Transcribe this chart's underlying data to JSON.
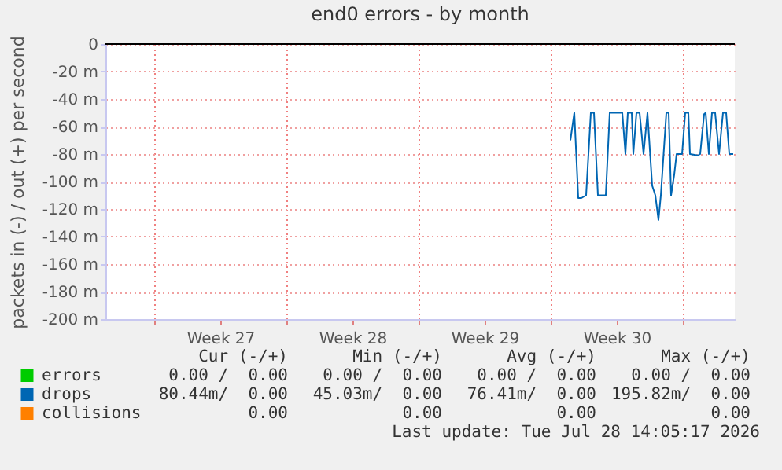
{
  "chart_data": {
    "type": "line",
    "title": "end0 errors - by month",
    "ylabel": "packets in (-) / out (+) per second",
    "x": [
      "2026-07-21T01:00",
      "2026-07-21T06:00",
      "2026-07-21T11:00",
      "2026-07-21T15:00",
      "2026-07-21T21:00",
      "2026-07-22T03:00",
      "2026-07-22T07:00",
      "2026-07-22T12:00",
      "2026-07-22T22:00",
      "2026-07-23T03:00",
      "2026-07-23T08:00",
      "2026-07-23T19:00",
      "2026-07-23T23:00",
      "2026-07-24T02:00",
      "2026-07-24T07:00",
      "2026-07-24T09:00",
      "2026-07-24T13:00",
      "2026-07-24T17:00",
      "2026-07-24T22:00",
      "2026-07-25T03:00",
      "2026-07-25T09:00",
      "2026-07-25T13:00",
      "2026-07-25T17:00",
      "2026-07-25T20:00",
      "2026-07-26T03:00",
      "2026-07-26T06:00",
      "2026-07-26T09:00",
      "2026-07-26T13:00",
      "2026-07-26T16:00",
      "2026-07-26T23:00",
      "2026-07-27T03:00",
      "2026-07-27T07:00",
      "2026-07-27T09:00",
      "2026-07-27T19:00",
      "2026-07-27T22:00",
      "2026-07-28T03:00",
      "2026-07-28T05:00",
      "2026-07-28T09:00",
      "2026-07-28T13:00",
      "2026-07-28T17:00",
      "2026-07-28T22:00",
      "2026-07-29T03:00",
      "2026-07-29T07:00",
      "2026-07-29T11:00",
      "2026-07-29T16:00"
    ],
    "series": [
      {
        "name": "errors",
        "color": "#00cc00",
        "values": [
          null,
          null,
          null,
          null,
          null,
          null,
          null,
          null,
          null,
          null,
          null,
          null,
          null,
          null,
          null,
          null,
          null,
          null,
          null,
          null,
          null,
          null,
          null,
          null,
          null,
          null,
          null,
          null,
          null,
          null,
          null,
          null,
          null,
          null,
          null,
          null,
          null,
          null,
          null,
          null,
          null,
          null,
          null,
          null,
          null
        ]
      },
      {
        "name": "drops",
        "color": "#0066b3",
        "values": [
          -70,
          -50,
          -112,
          -112,
          -110,
          -50,
          -50,
          -110,
          -110,
          -50,
          -50,
          -50,
          -80,
          -50,
          -50,
          -80,
          -50,
          -50,
          -80,
          -50,
          -103,
          -110,
          -128,
          -110,
          -50,
          -50,
          -110,
          -95,
          -80,
          -80,
          -50,
          -50,
          -80,
          -81,
          -80,
          -51,
          -50,
          -80,
          -50,
          -50,
          -80,
          -50,
          -50,
          -80,
          -80
        ]
      },
      {
        "name": "collisions",
        "color": "#ff8000",
        "values": [
          null,
          null,
          null,
          null,
          null,
          null,
          null,
          null,
          null,
          null,
          null,
          null,
          null,
          null,
          null,
          null,
          null,
          null,
          null,
          null,
          null,
          null,
          null,
          null,
          null,
          null,
          null,
          null,
          null,
          null,
          null,
          null,
          null,
          null,
          null,
          null,
          null,
          null,
          null,
          null,
          null,
          null,
          null,
          null,
          null
        ]
      }
    ],
    "xlim": [
      "2026-06-26T10:00",
      "2026-07-29T18:00"
    ],
    "xticks": [
      {
        "value": "2026-06-29T00:00",
        "label": null
      },
      {
        "value": "2026-07-02T12:00",
        "label": "Week 27"
      },
      {
        "value": "2026-07-06T00:00",
        "label": null
      },
      {
        "value": "2026-07-09T12:00",
        "label": "Week 28"
      },
      {
        "value": "2026-07-13T00:00",
        "label": null
      },
      {
        "value": "2026-07-16T12:00",
        "label": "Week 29"
      },
      {
        "value": "2026-07-20T00:00",
        "label": null
      },
      {
        "value": "2026-07-23T12:00",
        "label": "Week 30"
      },
      {
        "value": "2026-07-27T00:00",
        "label": null
      }
    ],
    "ylim": [
      -200,
      0
    ],
    "yticks": [
      0,
      {
        "value": -20,
        "label": "-20 m"
      },
      {
        "value": -40,
        "label": "-40 m"
      },
      {
        "value": -60,
        "label": "-60 m"
      },
      {
        "value": -80,
        "label": "-80 m"
      },
      {
        "value": -100,
        "label": "-100 m"
      },
      {
        "value": -120,
        "label": "-120 m"
      },
      {
        "value": -140,
        "label": "-140 m"
      },
      {
        "value": -160,
        "label": "-160 m"
      },
      {
        "value": -180,
        "label": "-180 m"
      },
      {
        "value": -200,
        "label": "-200 m"
      }
    ],
    "ref_lines": [
      {
        "axis": "y",
        "value": 0,
        "color": "#000000"
      }
    ],
    "grid": true,
    "legend": "bottom left",
    "annotations": [
      "Cur (-/+)",
      "Min (-/+)",
      "Avg (-/+)",
      "Max (-/+)",
      "0.00 /  0.00",
      "0.00 /  0.00",
      "0.00 /  0.00",
      "0.00 /  0.00",
      "80.44m/  0.00",
      "45.03m/  0.00",
      "76.41m/  0.00",
      "195.82m/  0.00",
      "0.00",
      "0.00",
      "0.00",
      "0.00",
      "Last update: Tue Jul 28 14:05:17 2026"
    ]
  }
}
